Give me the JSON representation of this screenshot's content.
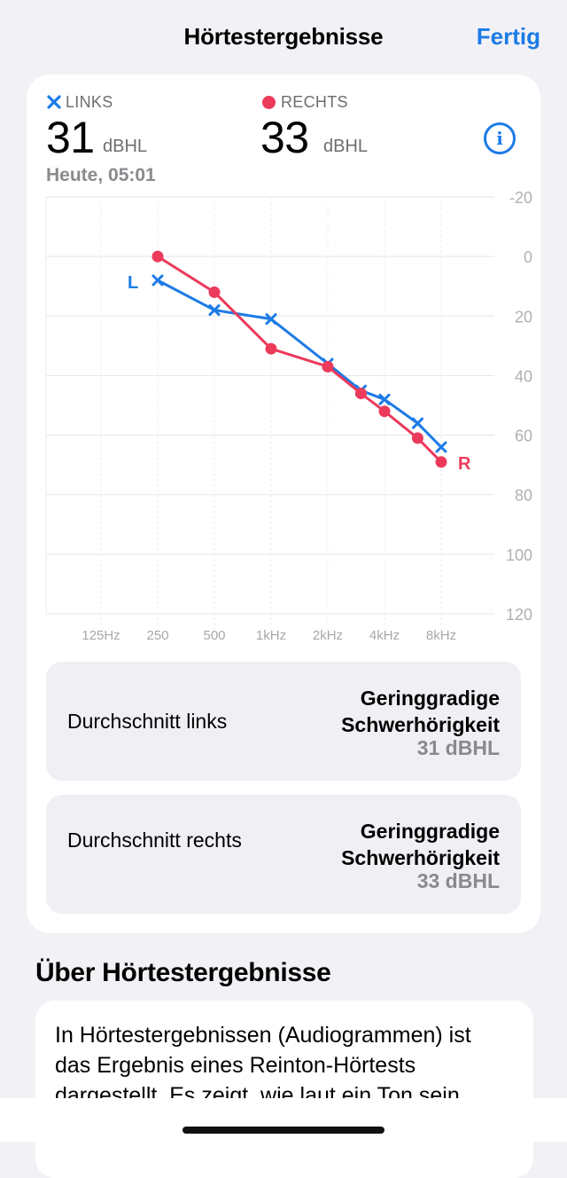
{
  "navbar": {
    "title": "Hörtestergebnisse",
    "done_label": "Fertig"
  },
  "results": {
    "left": {
      "legend": "LINKS",
      "value": "31",
      "unit": "dBHL"
    },
    "right": {
      "legend": "RECHTS",
      "value": "33",
      "unit": "dBHL"
    },
    "date": "Heute, 05:01"
  },
  "colors": {
    "left": "#1c7be6",
    "right": "#ec3a5b",
    "accent": "#1c7be6"
  },
  "chart_data": {
    "type": "line",
    "title": "",
    "x_ticks": [
      "125Hz",
      "250",
      "500",
      "1kHz",
      "2kHz",
      "4kHz",
      "8kHz"
    ],
    "y_ticks": [
      "-20",
      "0",
      "20",
      "40",
      "60",
      "80",
      "100",
      "120"
    ],
    "ylim": [
      -20,
      120
    ],
    "y_inverted": true,
    "grid": true,
    "series": [
      {
        "name": "L",
        "marker": "x",
        "color": "#1c7be6",
        "points": [
          {
            "x": 250,
            "y": 8
          },
          {
            "x": 500,
            "y": 18
          },
          {
            "x": 1000,
            "y": 21
          },
          {
            "x": 2000,
            "y": 36
          },
          {
            "x": 3000,
            "y": 45
          },
          {
            "x": 4000,
            "y": 48
          },
          {
            "x": 6000,
            "y": 56
          },
          {
            "x": 8000,
            "y": 64
          }
        ]
      },
      {
        "name": "R",
        "marker": "dot",
        "color": "#ec3a5b",
        "points": [
          {
            "x": 250,
            "y": 0
          },
          {
            "x": 500,
            "y": 12
          },
          {
            "x": 1000,
            "y": 31
          },
          {
            "x": 2000,
            "y": 37
          },
          {
            "x": 3000,
            "y": 46
          },
          {
            "x": 4000,
            "y": 52
          },
          {
            "x": 6000,
            "y": 61
          },
          {
            "x": 8000,
            "y": 69
          }
        ]
      }
    ]
  },
  "summary": [
    {
      "label": "Durchschnitt links",
      "category": "Geringgradige Schwerhörigkeit",
      "value": "31 dBHL"
    },
    {
      "label": "Durchschnitt rechts",
      "category": "Geringgradige Schwerhörigkeit",
      "value": "33 dBHL"
    }
  ],
  "about": {
    "title": "Über Hörtestergebnisse",
    "text": "In Hörtestergebnissen (Audiogrammen) ist das Ergebnis eines Reinton-Hörtests dargestellt. Es zeigt, wie laut ein Ton sein"
  }
}
